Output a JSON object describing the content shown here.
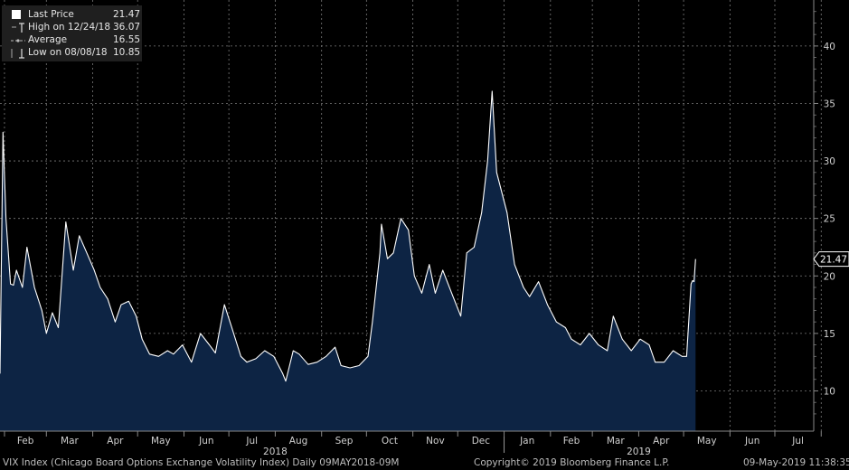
{
  "legend": {
    "items": [
      {
        "label": "Last Price",
        "value": "21.47",
        "marker": "filled-square"
      },
      {
        "label": "High on 12/24/18",
        "value": "36.07",
        "marker": "high-tick"
      },
      {
        "label": "Average",
        "value": "16.55",
        "marker": "dashed-line"
      },
      {
        "label": "Low on 08/08/18",
        "value": "10.85",
        "marker": "low-tick"
      }
    ]
  },
  "last_price_label": "21.47",
  "footer": {
    "description": "VIX Index (Chicago Board Options Exchange Volatility Index)  Daily 09MAY2018-09M",
    "copyright": "Copyright© 2019 Bloomberg Finance L.P.",
    "timestamp": "09-May-2019 11:38:35"
  },
  "colors": {
    "background": "#000000",
    "line": "#ffffff",
    "fill": "#0d2444",
    "grid": "#7a7a7a"
  },
  "chart_data": {
    "type": "area",
    "title": "",
    "xlabel": "",
    "ylabel": "",
    "ylim": [
      6.5,
      44
    ],
    "yticks": [
      10,
      15,
      20,
      25,
      30,
      35,
      40
    ],
    "grid": true,
    "y_axis_side": "right",
    "month_labels": [
      "Feb",
      "Mar",
      "Apr",
      "May",
      "Jun",
      "Jul",
      "Aug",
      "Sep",
      "Oct",
      "Nov",
      "Dec",
      "Jan",
      "Feb",
      "Mar",
      "Apr",
      "May",
      "Jun",
      "Jul"
    ],
    "year_labels": [
      "2018",
      "2019"
    ],
    "x": [
      "2018-01-29",
      "2018-01-31",
      "2018-02-02",
      "2018-02-05",
      "2018-02-07",
      "2018-02-09",
      "2018-02-13",
      "2018-02-16",
      "2018-02-21",
      "2018-02-26",
      "2018-03-01",
      "2018-03-05",
      "2018-03-09",
      "2018-03-14",
      "2018-03-19",
      "2018-03-23",
      "2018-03-28",
      "2018-04-02",
      "2018-04-06",
      "2018-04-11",
      "2018-04-16",
      "2018-04-20",
      "2018-04-25",
      "2018-04-30",
      "2018-05-04",
      "2018-05-09",
      "2018-05-15",
      "2018-05-21",
      "2018-05-25",
      "2018-05-31",
      "2018-06-06",
      "2018-06-12",
      "2018-06-18",
      "2018-06-22",
      "2018-06-28",
      "2018-07-03",
      "2018-07-09",
      "2018-07-13",
      "2018-07-19",
      "2018-07-25",
      "2018-07-31",
      "2018-08-06",
      "2018-08-08",
      "2018-08-13",
      "2018-08-17",
      "2018-08-23",
      "2018-08-29",
      "2018-09-04",
      "2018-09-10",
      "2018-09-14",
      "2018-09-20",
      "2018-09-26",
      "2018-10-02",
      "2018-10-05",
      "2018-10-10",
      "2018-10-11",
      "2018-10-15",
      "2018-10-19",
      "2018-10-24",
      "2018-10-29",
      "2018-11-02",
      "2018-11-07",
      "2018-11-12",
      "2018-11-16",
      "2018-11-21",
      "2018-11-27",
      "2018-12-03",
      "2018-12-07",
      "2018-12-12",
      "2018-12-17",
      "2018-12-21",
      "2018-12-24",
      "2018-12-27",
      "2019-01-03",
      "2019-01-08",
      "2019-01-14",
      "2019-01-18",
      "2019-01-24",
      "2019-01-30",
      "2019-02-05",
      "2019-02-11",
      "2019-02-15",
      "2019-02-21",
      "2019-02-27",
      "2019-03-05",
      "2019-03-11",
      "2019-03-15",
      "2019-03-21",
      "2019-03-27",
      "2019-04-02",
      "2019-04-08",
      "2019-04-12",
      "2019-04-18",
      "2019-04-24",
      "2019-04-30",
      "2019-05-03",
      "2019-05-06",
      "2019-05-07",
      "2019-05-08",
      "2019-05-09"
    ],
    "series": [
      {
        "values": [
          11.5,
          32.5,
          25.0,
          19.3,
          19.2,
          20.5,
          19.0,
          22.5,
          19.0,
          17.0,
          15.0,
          16.8,
          15.5,
          24.7,
          20.5,
          23.5,
          22.0,
          20.5,
          19.0,
          18.0,
          16.0,
          17.5,
          17.8,
          16.5,
          14.5,
          13.2,
          13.0,
          13.5,
          13.2,
          14.0,
          12.5,
          15.0,
          14.0,
          13.3,
          17.5,
          15.5,
          13.0,
          12.5,
          12.8,
          13.5,
          13.0,
          11.5,
          10.85,
          13.5,
          13.2,
          12.3,
          12.5,
          13.0,
          13.8,
          12.2,
          12.0,
          12.2,
          13.0,
          16.0,
          22.0,
          24.5,
          21.5,
          22.0,
          25.0,
          24.0,
          20.0,
          18.5,
          21.0,
          18.5,
          20.5,
          18.5,
          16.5,
          22.0,
          22.5,
          25.5,
          30.0,
          36.07,
          29.0,
          25.5,
          21.0,
          19.0,
          18.2,
          19.5,
          17.5,
          16.0,
          15.5,
          14.5,
          14.0,
          15.0,
          14.0,
          13.5,
          16.5,
          14.5,
          13.5,
          14.5,
          14.0,
          12.5,
          12.5,
          13.5,
          13.0,
          13.0,
          19.3,
          19.6,
          19.5,
          21.47
        ]
      }
    ]
  }
}
